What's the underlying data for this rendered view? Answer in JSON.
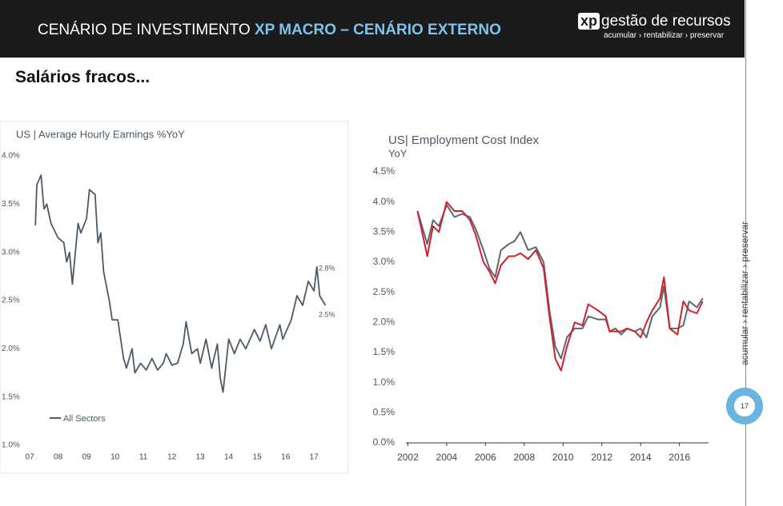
{
  "header": {
    "title_plain": "CENÁRIO DE INVESTIMENTO",
    "title_bold": "XP MACRO – CENÁRIO EXTERNO",
    "logo_mark": "xp",
    "logo_text": "gestão de recursos",
    "tagline": "acumular › rentabilizar › preservar"
  },
  "slide_title": "Salários fracos...",
  "side_text": "acumular › rentabilizar › preservar",
  "page_number": "17",
  "chart_data": [
    {
      "type": "line",
      "title": "US | Average Hourly Earnings %YoY",
      "legend": "All Sectors",
      "annotations": [
        "2.8%",
        "2.5%"
      ],
      "x": [
        2007.2,
        2007.25,
        2007.4,
        2007.5,
        2007.6,
        2007.75,
        2008.0,
        2008.2,
        2008.3,
        2008.4,
        2008.5,
        2008.7,
        2008.8,
        2009.0,
        2009.1,
        2009.3,
        2009.4,
        2009.5,
        2009.6,
        2009.8,
        2009.9,
        2010.1,
        2010.3,
        2010.4,
        2010.6,
        2010.7,
        2010.9,
        2011.1,
        2011.3,
        2011.5,
        2011.7,
        2011.8,
        2012.0,
        2012.2,
        2012.4,
        2012.5,
        2012.7,
        2012.9,
        2013.0,
        2013.2,
        2013.4,
        2013.6,
        2013.7,
        2013.8,
        2014.0,
        2014.2,
        2014.4,
        2014.6,
        2014.9,
        2015.1,
        2015.3,
        2015.5,
        2015.8,
        2015.9,
        2016.2,
        2016.4,
        2016.6,
        2016.8,
        2017.0,
        2017.1,
        2017.2,
        2017.3,
        2017.4
      ],
      "series": [
        {
          "name": "All Sectors",
          "color": "#4b5a66",
          "values": [
            3.28,
            3.7,
            3.8,
            3.45,
            3.5,
            3.3,
            3.15,
            3.1,
            2.9,
            3.0,
            2.67,
            3.3,
            3.2,
            3.35,
            3.65,
            3.6,
            3.1,
            3.2,
            2.8,
            2.5,
            2.3,
            2.3,
            1.9,
            1.8,
            2.0,
            1.75,
            1.85,
            1.78,
            1.9,
            1.78,
            1.85,
            1.95,
            1.83,
            1.85,
            2.05,
            2.28,
            1.95,
            2.0,
            1.85,
            2.1,
            1.8,
            2.05,
            1.7,
            1.55,
            2.1,
            1.95,
            2.1,
            2.0,
            2.2,
            2.08,
            2.25,
            2.0,
            2.25,
            2.1,
            2.3,
            2.55,
            2.45,
            2.7,
            2.6,
            2.85,
            2.55,
            2.5,
            2.45
          ]
        }
      ],
      "xlim": [
        2006.8,
        2017.5
      ],
      "ylim": [
        1.0,
        4.0
      ],
      "xticks": [
        {
          "value": 2007,
          "label": "07"
        },
        {
          "value": 2008,
          "label": "08"
        },
        {
          "value": 2009,
          "label": "09"
        },
        {
          "value": 2010,
          "label": "10"
        },
        {
          "value": 2011,
          "label": "11"
        },
        {
          "value": 2012,
          "label": "12"
        },
        {
          "value": 2013,
          "label": "13"
        },
        {
          "value": 2014,
          "label": "14"
        },
        {
          "value": 2015,
          "label": "15"
        },
        {
          "value": 2016,
          "label": "16"
        },
        {
          "value": 2017,
          "label": "17"
        }
      ],
      "yticks": [
        {
          "value": 1.0,
          "label": "1.0%"
        },
        {
          "value": 1.5,
          "label": "1.5%"
        },
        {
          "value": 2.0,
          "label": "2.0%"
        },
        {
          "value": 2.5,
          "label": "2.5%"
        },
        {
          "value": 3.0,
          "label": "3.0%"
        },
        {
          "value": 3.5,
          "label": "3.5%"
        },
        {
          "value": 4.0,
          "label": "4.0%"
        }
      ]
    },
    {
      "type": "line",
      "title": "US| Employment Cost Index",
      "subtitle": "YoY",
      "x": [
        2002.5,
        2003.0,
        2003.3,
        2003.6,
        2004.0,
        2004.4,
        2004.8,
        2005.2,
        2005.5,
        2005.9,
        2006.2,
        2006.5,
        2006.8,
        2007.2,
        2007.5,
        2007.8,
        2008.2,
        2008.6,
        2009.0,
        2009.3,
        2009.6,
        2009.9,
        2010.2,
        2010.6,
        2011.0,
        2011.3,
        2011.8,
        2012.2,
        2012.4,
        2012.7,
        2013.0,
        2013.3,
        2013.7,
        2014.0,
        2014.3,
        2014.6,
        2015.0,
        2015.2,
        2015.5,
        2015.9,
        2016.2,
        2016.5,
        2016.9,
        2017.2
      ],
      "series": [
        {
          "color": "#5a6870",
          "values": [
            3.85,
            3.3,
            3.7,
            3.6,
            3.95,
            3.75,
            3.8,
            3.75,
            3.55,
            3.2,
            2.9,
            2.75,
            3.2,
            3.3,
            3.35,
            3.5,
            3.2,
            3.25,
            3.0,
            2.2,
            1.6,
            1.4,
            1.75,
            1.9,
            1.9,
            2.1,
            2.05,
            2.05,
            1.85,
            1.9,
            1.8,
            1.9,
            1.85,
            1.9,
            1.75,
            2.1,
            2.25,
            2.6,
            1.9,
            1.9,
            1.95,
            2.35,
            2.25,
            2.4
          ]
        },
        {
          "color": "#d0202a",
          "values": [
            3.85,
            3.1,
            3.6,
            3.5,
            4.0,
            3.85,
            3.85,
            3.7,
            3.45,
            3.0,
            2.85,
            2.65,
            2.95,
            3.1,
            3.1,
            3.15,
            3.05,
            3.2,
            2.9,
            2.1,
            1.4,
            1.2,
            1.6,
            2.0,
            1.95,
            2.3,
            2.2,
            2.1,
            1.85,
            1.85,
            1.85,
            1.9,
            1.85,
            1.75,
            2.0,
            2.2,
            2.4,
            2.75,
            1.9,
            1.8,
            2.35,
            2.2,
            2.15,
            2.35
          ]
        }
      ],
      "xlim": [
        2001.9,
        2017.5
      ],
      "ylim": [
        0,
        4.5
      ],
      "xticks": [
        2002,
        2004,
        2006,
        2008,
        2010,
        2012,
        2014,
        2016
      ],
      "yticks": [
        {
          "value": 0,
          "label": "0.0%"
        },
        {
          "value": 0.5,
          "label": "0.5%"
        },
        {
          "value": 1.0,
          "label": "1.0%"
        },
        {
          "value": 1.5,
          "label": "1.5%"
        },
        {
          "value": 2.0,
          "label": "2.0%"
        },
        {
          "value": 2.5,
          "label": "2.5%"
        },
        {
          "value": 3.0,
          "label": "3.0%"
        },
        {
          "value": 3.5,
          "label": "3.5%"
        },
        {
          "value": 4.0,
          "label": "4.0%"
        },
        {
          "value": 4.5,
          "label": "4.5%"
        }
      ]
    }
  ]
}
